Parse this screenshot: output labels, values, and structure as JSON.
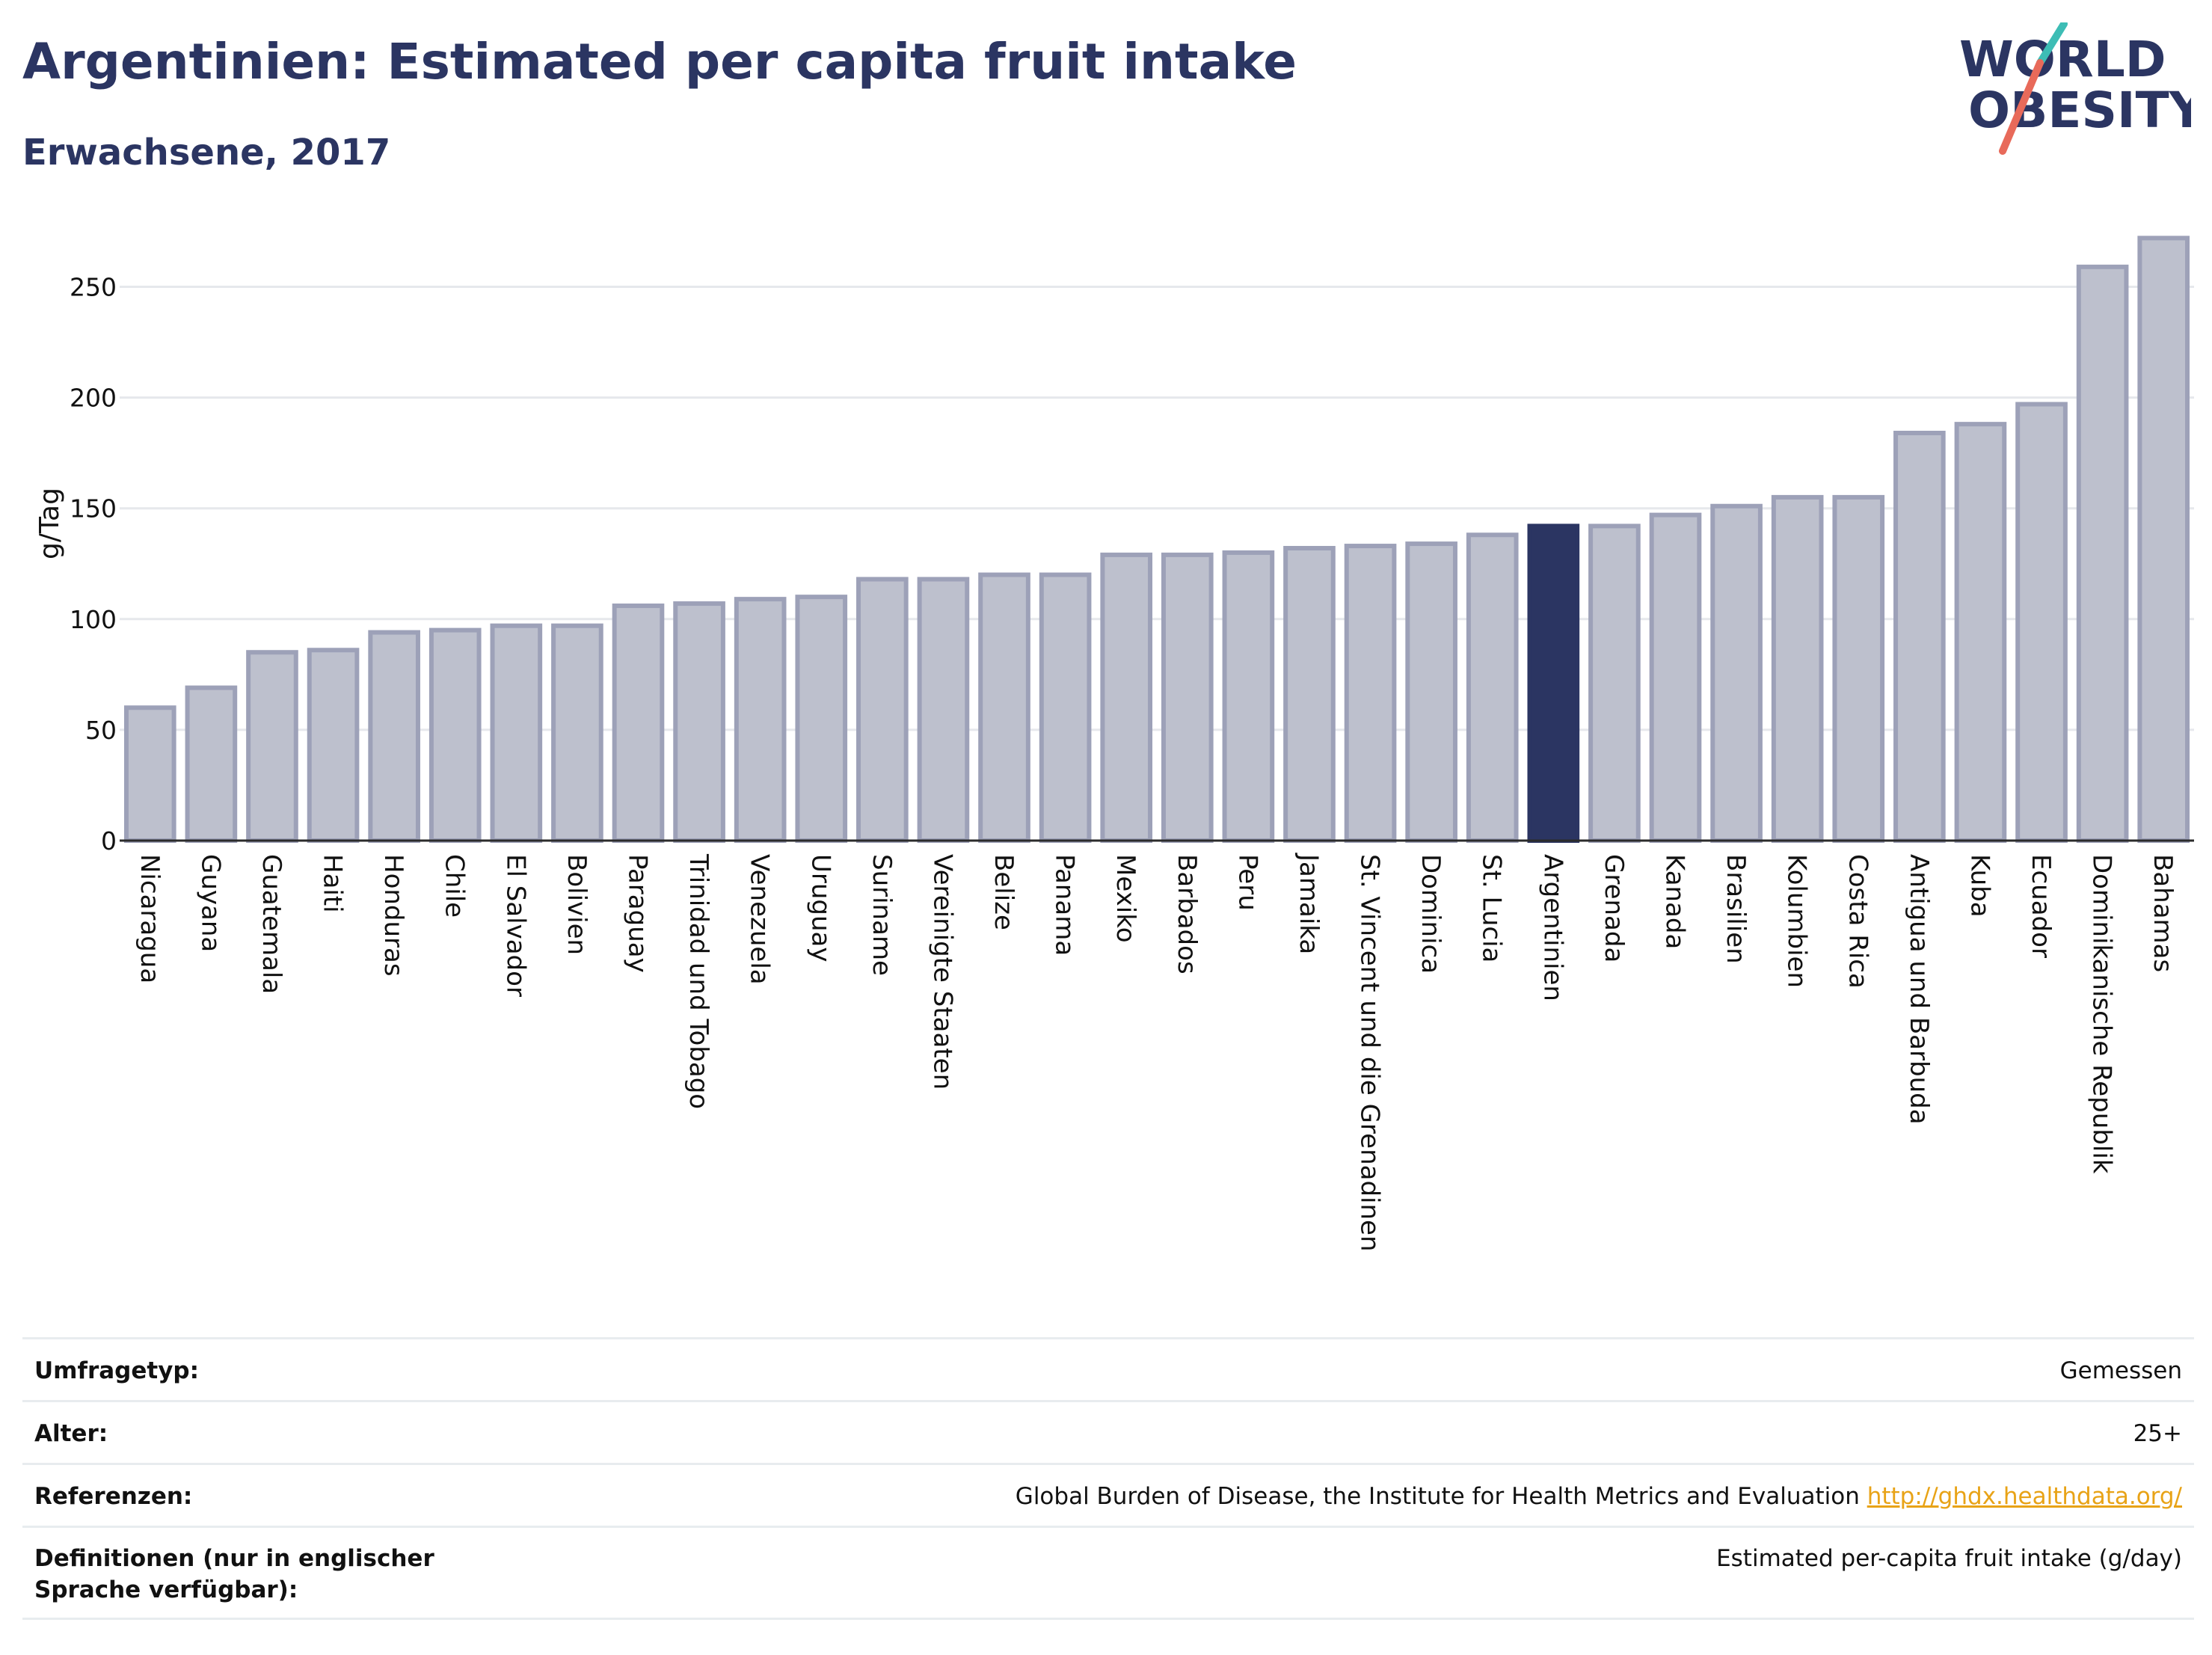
{
  "header": {
    "title": "Argentinien: Estimated per capita fruit intake",
    "subtitle": "Erwachsene, 2017"
  },
  "logo": {
    "line1": "WORLD",
    "line2": "OBESITY",
    "slash_colors": [
      "#3dbdb5",
      "#e86a5a"
    ]
  },
  "colors": {
    "bar": "#bdc0cd",
    "bar_border": "#9da1b8",
    "highlight": "#2b3562",
    "grid": "#e6e8ec",
    "text": "#2b3562"
  },
  "chart_data": {
    "type": "bar",
    "title": "Argentinien: Estimated per capita fruit intake",
    "subtitle": "Erwachsene, 2017",
    "xlabel": "",
    "ylabel": "g/Tag",
    "ylim": [
      0,
      275
    ],
    "yticks": [
      0,
      50,
      100,
      150,
      200,
      250
    ],
    "grid": true,
    "highlight": "Argentinien",
    "categories": [
      "Nicaragua",
      "Guyana",
      "Guatemala",
      "Haiti",
      "Honduras",
      "Chile",
      "El Salvador",
      "Bolivien",
      "Paraguay",
      "Trinidad und Tobago",
      "Venezuela",
      "Uruguay",
      "Suriname",
      "Vereinigte Staaten",
      "Belize",
      "Panama",
      "Mexiko",
      "Barbados",
      "Peru",
      "Jamaika",
      "St. Vincent und die Grenadinen",
      "Dominica",
      "St. Lucia",
      "Argentinien",
      "Grenada",
      "Kanada",
      "Brasilien",
      "Kolumbien",
      "Costa Rica",
      "Antigua und Barbuda",
      "Kuba",
      "Ecuador",
      "Dominikanische Republik",
      "Bahamas"
    ],
    "values": [
      60,
      69,
      85,
      86,
      94,
      95,
      97,
      97,
      106,
      107,
      109,
      110,
      118,
      118,
      120,
      120,
      129,
      129,
      130,
      132,
      133,
      134,
      138,
      142,
      142,
      147,
      151,
      155,
      155,
      184,
      188,
      197,
      259,
      272
    ]
  },
  "info": [
    {
      "label": "Umfragetyp:",
      "value": "Gemessen"
    },
    {
      "label": "Alter:",
      "value": "25+"
    },
    {
      "label": "Referenzen:",
      "value": "Global Burden of Disease, the Institute for Health Metrics and Evaluation",
      "link": "http://ghdx.healthdata.org/"
    },
    {
      "label": "Definitionen (nur in englischer Sprache verfügbar):",
      "value": "Estimated per-capita fruit intake (g/day)"
    }
  ]
}
